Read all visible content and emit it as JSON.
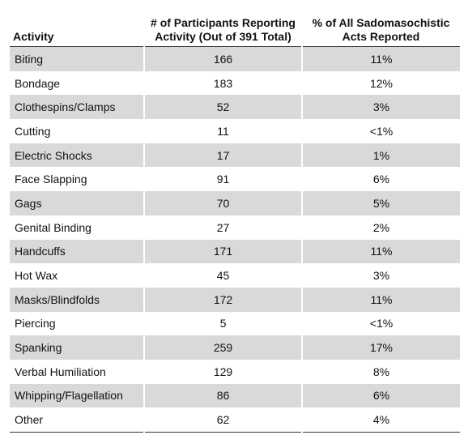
{
  "table": {
    "headers": [
      [
        "Activity"
      ],
      [
        "# of Participants Reporting",
        "Activity (Out of 391 Total)"
      ],
      [
        "% of All Sadomasochistic",
        "Acts Reported"
      ]
    ],
    "rows": [
      [
        "Biting",
        166,
        "11%"
      ],
      [
        "Bondage",
        183,
        "12%"
      ],
      [
        "Clothespins/Clamps",
        52,
        "3%"
      ],
      [
        "Cutting",
        11,
        "<1%"
      ],
      [
        "Electric Shocks",
        17,
        "1%"
      ],
      [
        "Face Slapping",
        91,
        "6%"
      ],
      [
        "Gags",
        70,
        "5%"
      ],
      [
        "Genital Binding",
        27,
        "2%"
      ],
      [
        "Handcuffs",
        171,
        "11%"
      ],
      [
        "Hot Wax",
        45,
        "3%"
      ],
      [
        "Masks/Blindfolds",
        172,
        "11%"
      ],
      [
        "Piercing",
        5,
        "<1%"
      ],
      [
        "Spanking",
        259,
        "17%"
      ],
      [
        "Verbal Humiliation",
        129,
        "8%"
      ],
      [
        "Whipping/Flagellation",
        86,
        "6%"
      ],
      [
        "Other",
        62,
        "4%"
      ]
    ]
  }
}
